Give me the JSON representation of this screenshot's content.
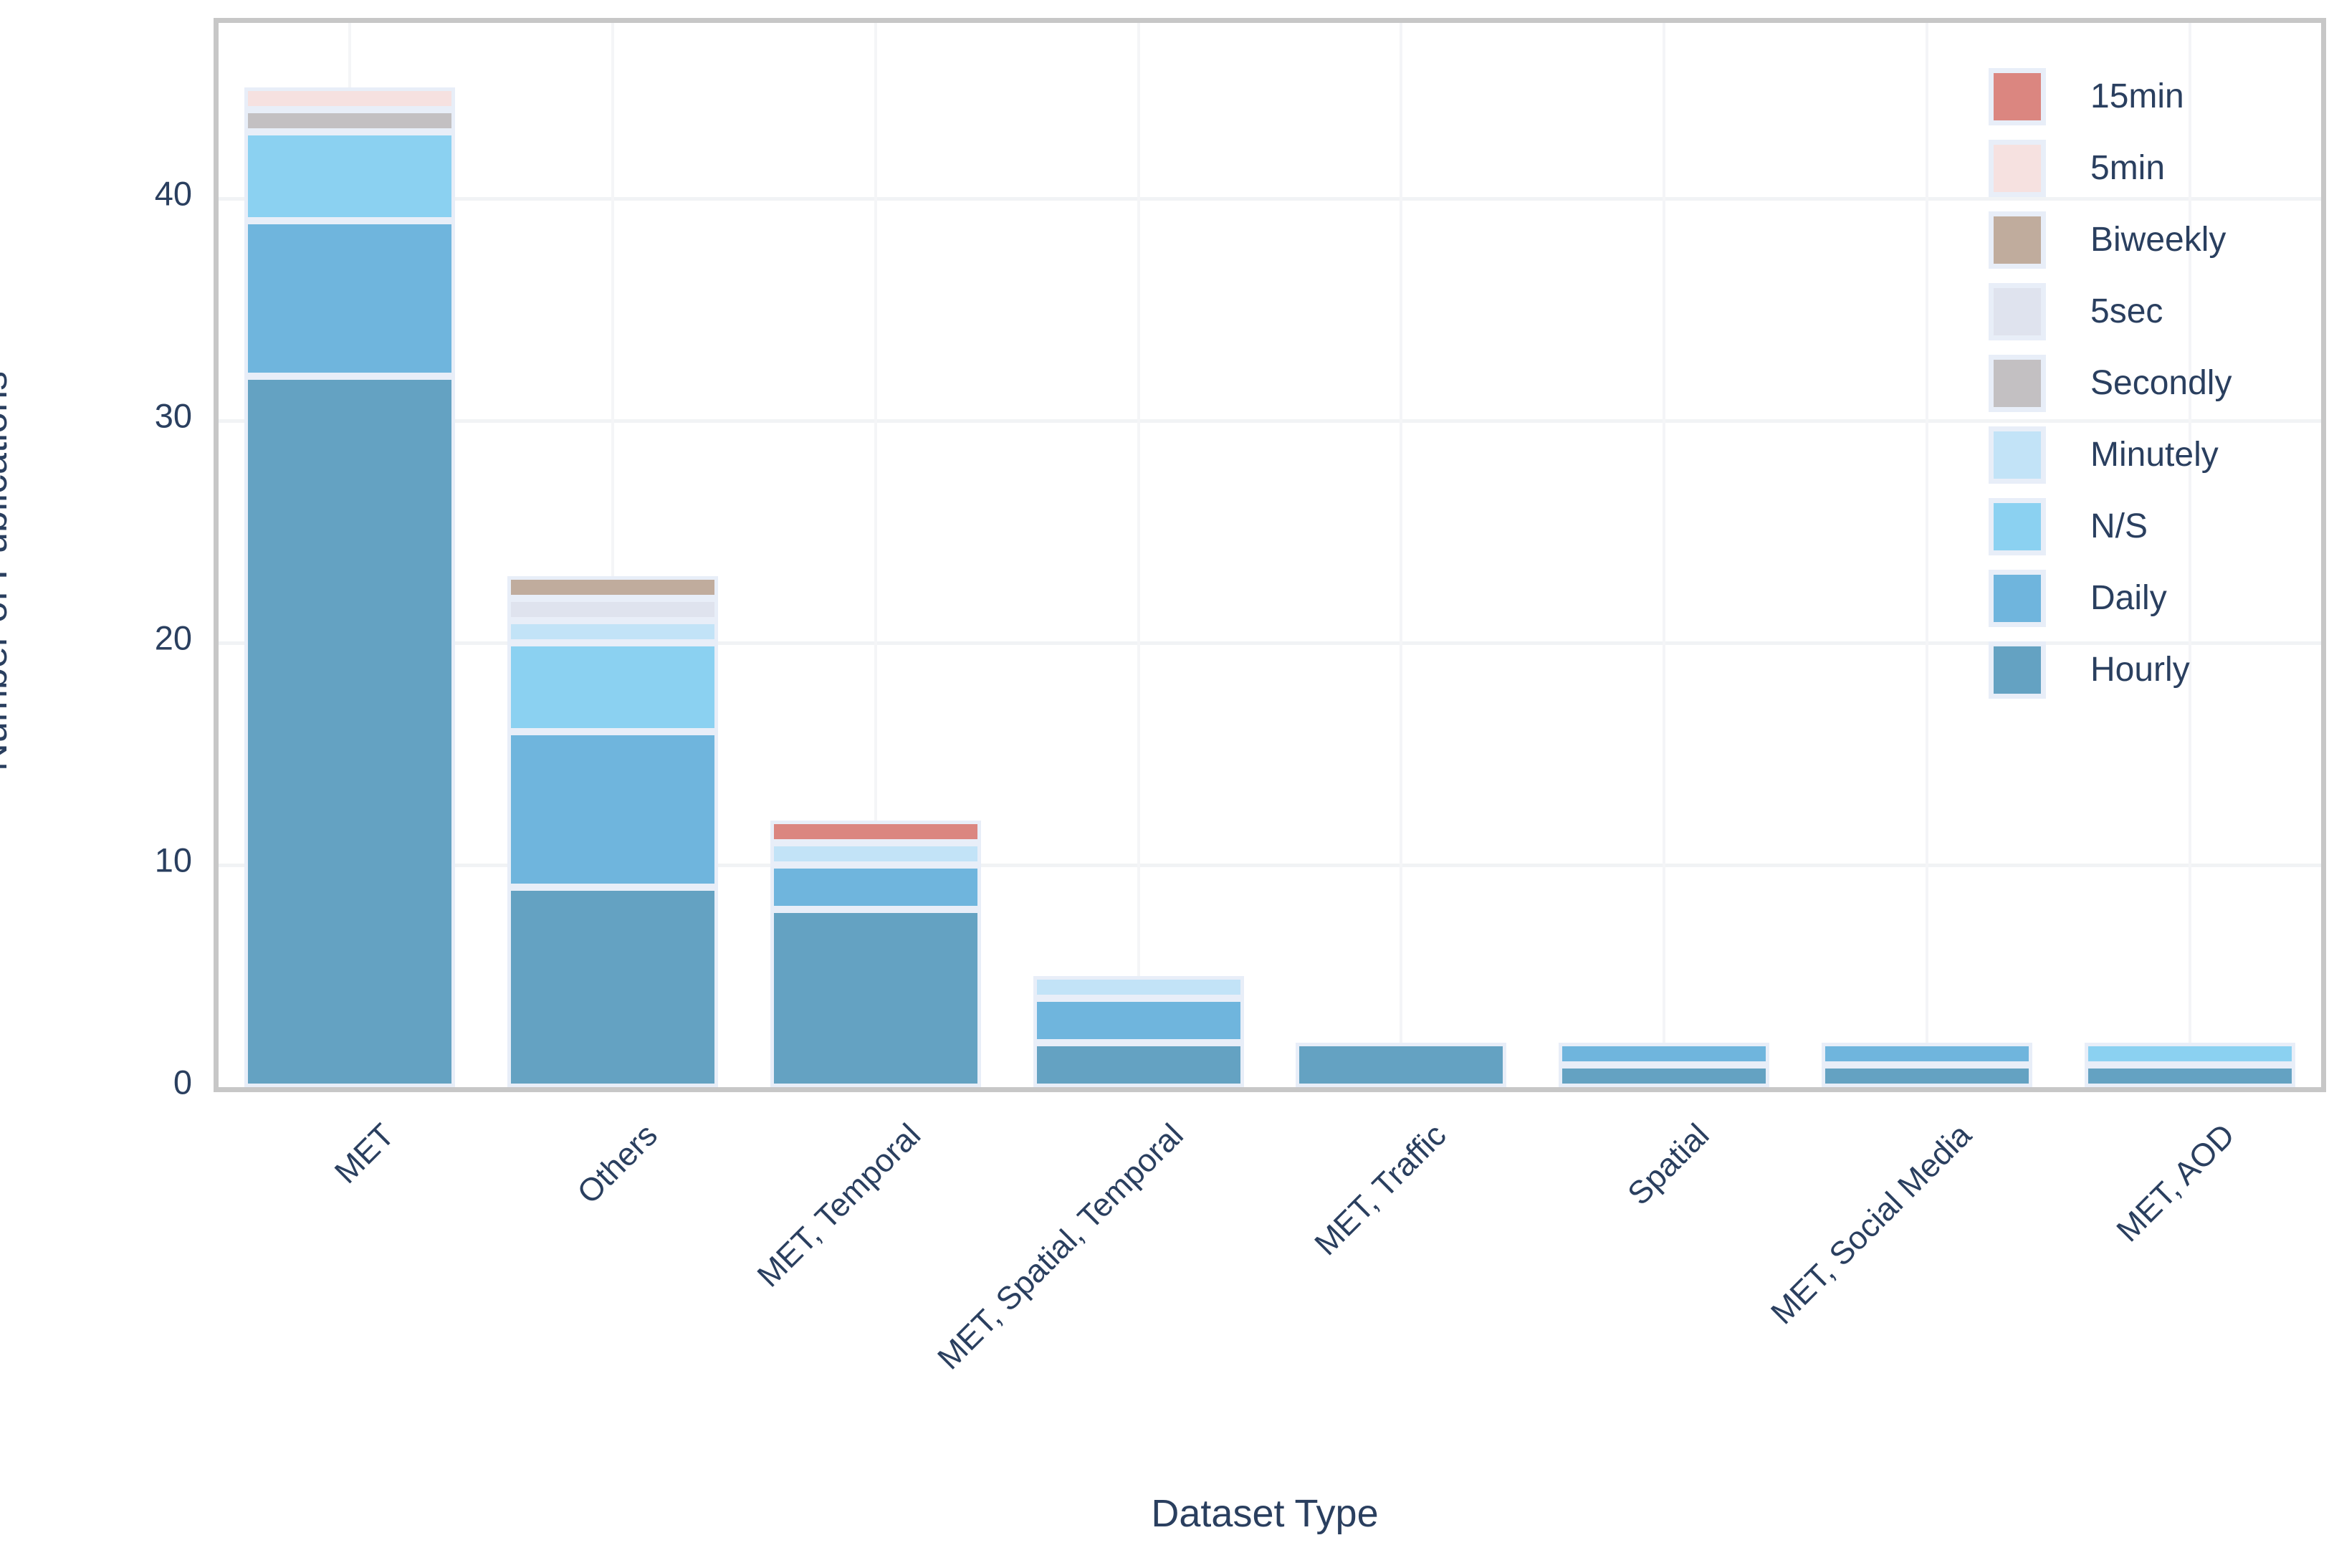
{
  "chart_data": {
    "type": "bar",
    "stacked": true,
    "title": "",
    "xlabel": "Dataset Type",
    "ylabel": "Number of Publications",
    "categories": [
      "MET",
      "Others",
      "MET, Temporal",
      "MET, Spatial, Temporal",
      "MET, Traffic",
      "Spatial",
      "MET, Social Media",
      "MET, AOD"
    ],
    "series": [
      {
        "name": "Hourly",
        "color": "#64a2c2",
        "values": [
          32,
          9,
          8,
          2,
          2,
          1,
          1,
          1
        ]
      },
      {
        "name": "Daily",
        "color": "#6fb5dd",
        "values": [
          7,
          7,
          2,
          2,
          0,
          1,
          1,
          0
        ]
      },
      {
        "name": "N/S",
        "color": "#8bd1f1",
        "values": [
          4,
          4,
          0,
          0,
          0,
          0,
          0,
          1
        ]
      },
      {
        "name": "Minutely",
        "color": "#c2e3f7",
        "values": [
          0,
          1,
          1,
          1,
          0,
          0,
          0,
          0
        ]
      },
      {
        "name": "Secondly",
        "color": "#c3c0c2",
        "values": [
          1,
          0,
          0,
          0,
          0,
          0,
          0,
          0
        ]
      },
      {
        "name": "5sec",
        "color": "#dfe3ee",
        "values": [
          0,
          1,
          0,
          0,
          0,
          0,
          0,
          0
        ]
      },
      {
        "name": "Biweekly",
        "color": "#c0ac9d",
        "values": [
          0,
          1,
          0,
          0,
          0,
          0,
          0,
          0
        ]
      },
      {
        "name": "5min",
        "color": "#f6e1e0",
        "values": [
          1,
          0,
          0,
          0,
          0,
          0,
          0,
          0
        ]
      },
      {
        "name": "15min",
        "color": "#db8680",
        "values": [
          0,
          0,
          1,
          0,
          0,
          0,
          0,
          0
        ]
      }
    ],
    "totals": [
      45,
      23,
      12,
      5,
      2,
      2,
      2,
      2
    ],
    "legend_order": [
      "15min",
      "5min",
      "Biweekly",
      "5sec",
      "Secondly",
      "Minutely",
      "N/S",
      "Daily",
      "Hourly"
    ],
    "legend_position": "upper right",
    "yticks": [
      0,
      10,
      20,
      30,
      40
    ],
    "ylim": [
      0,
      47.9
    ],
    "grid": true
  },
  "style_colors": {
    "text": "#2a3f5f",
    "spine": "#c7c7c7",
    "gridline": "#f1f3f5",
    "segment_outline": "#e8eef8"
  }
}
